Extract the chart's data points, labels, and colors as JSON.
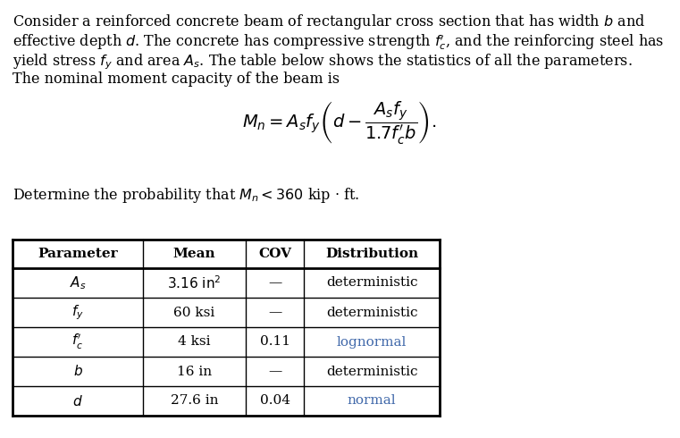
{
  "background_color": "#ffffff",
  "text_color": "#000000",
  "blue_color": "#4169aa",
  "body_fontsize": 11.5,
  "eq_fontsize": 14.0,
  "table_fontsize": 11.0,
  "lines": [
    "Consider a reinforced concrete beam of rectangular cross section that has width $\\mathit{b}$ and",
    "effective depth $\\mathit{d}$. The concrete has compressive strength $f_c^{\\prime}$, and the reinforcing steel has",
    "yield stress $f_y$ and area $A_s$. The table below shows the statistics of all the parameters.",
    "The nominal moment capacity of the beam is"
  ],
  "equation": "$M_n = A_s f_y \\left( d - \\dfrac{A_s f_y}{1.7 f_c^{\\prime} b} \\right).$",
  "paragraph2": "Determine the probability that $M_n < 360$ kip $\\cdot$ ft.",
  "table_headers": [
    "Parameter",
    "Mean",
    "COV",
    "Distribution"
  ],
  "table_rows": [
    [
      "$A_s$",
      "$3.16\\ \\mathrm{in}^2$",
      "—",
      "deterministic"
    ],
    [
      "$f_y$",
      "60 ksi",
      "—",
      "deterministic"
    ],
    [
      "$f_c^{\\prime}$",
      "4 ksi",
      "0.11",
      "lognormal"
    ],
    [
      "$b$",
      "16 in",
      "—",
      "deterministic"
    ],
    [
      "$d$",
      "27.6 in",
      "0.04",
      "normal"
    ]
  ],
  "row_colors": [
    "#000000",
    "#000000",
    "#4169aa",
    "#000000",
    "#4169aa"
  ],
  "figwidth": 7.61,
  "figheight": 4.9,
  "dpi": 100
}
